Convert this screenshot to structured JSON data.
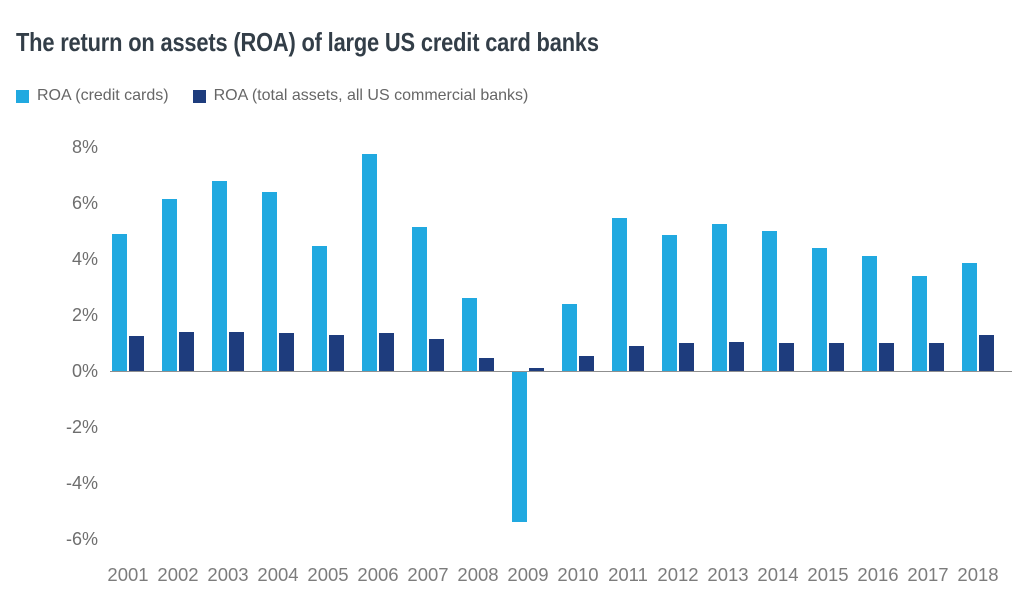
{
  "chart_data": {
    "type": "bar",
    "title": "The return on assets (ROA) of large US credit card banks",
    "xlabel": "",
    "ylabel": "",
    "categories": [
      "2001",
      "2002",
      "2003",
      "2004",
      "2005",
      "2006",
      "2007",
      "2008",
      "2009",
      "2010",
      "2011",
      "2012",
      "2013",
      "2014",
      "2015",
      "2016",
      "2017",
      "2018"
    ],
    "series": [
      {
        "name": "ROA (credit cards)",
        "color": "#21a9e0",
        "values": [
          4.9,
          6.15,
          6.8,
          6.4,
          4.45,
          7.75,
          5.15,
          2.6,
          -5.4,
          2.4,
          5.45,
          4.85,
          5.25,
          5.0,
          4.4,
          4.1,
          3.4,
          3.85
        ]
      },
      {
        "name": "ROA (total assets, all US commercial banks)",
        "color": "#1e3c7d",
        "values": [
          1.25,
          1.4,
          1.4,
          1.35,
          1.3,
          1.35,
          1.15,
          0.45,
          0.1,
          0.55,
          0.9,
          1.0,
          1.05,
          1.0,
          1.0,
          1.0,
          1.0,
          1.3
        ]
      }
    ],
    "y_ticks": [
      "8%",
      "6%",
      "4%",
      "2%",
      "0%",
      "-2%",
      "-4%",
      "-6%"
    ],
    "y_tick_values": [
      8,
      6,
      4,
      2,
      0,
      -2,
      -4,
      -6
    ],
    "ylim": [
      -6,
      8
    ],
    "grid": false,
    "legend_position": "top-left",
    "unit": "%"
  },
  "legend": [
    {
      "label": "ROA (credit cards)",
      "color": "#21a9e0"
    },
    {
      "label": "ROA (total assets, all US commercial banks)",
      "color": "#1e3c7d"
    }
  ]
}
